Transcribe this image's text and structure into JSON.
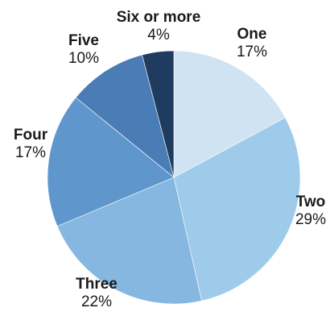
{
  "chart_data": {
    "type": "pie",
    "categories": [
      "One",
      "Two",
      "Three",
      "Four",
      "Five",
      "Six or more"
    ],
    "values": [
      17,
      29,
      22,
      17,
      10,
      4
    ],
    "value_labels": [
      "17%",
      "29%",
      "22%",
      "17%",
      "10%",
      "4%"
    ],
    "colors": [
      "#cfe3f2",
      "#9fcbea",
      "#86b7e0",
      "#5f97cc",
      "#4a7cb5",
      "#1f3b5f"
    ],
    "start_angle_deg": 0,
    "direction": "clockwise",
    "title": ""
  }
}
